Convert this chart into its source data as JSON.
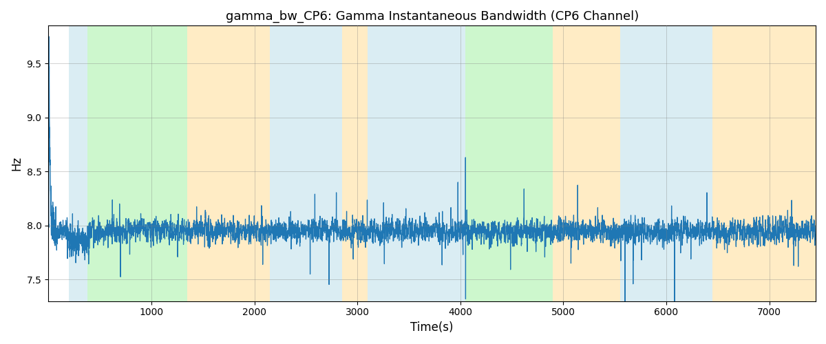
{
  "title": "gamma_bw_CP6: Gamma Instantaneous Bandwidth (CP6 Channel)",
  "xlabel": "Time(s)",
  "ylabel": "Hz",
  "xlim": [
    0,
    7450
  ],
  "ylim": [
    7.3,
    9.85
  ],
  "yticks": [
    7.5,
    8.0,
    8.5,
    9.0,
    9.5
  ],
  "xticks": [
    1000,
    2000,
    3000,
    4000,
    5000,
    6000,
    7000
  ],
  "line_color": "#1f77b4",
  "line_width": 0.9,
  "background_color": "#ffffff",
  "seed": 42,
  "bands": [
    {
      "xmin": 200,
      "xmax": 380,
      "color": "#ADD8E6",
      "alpha": 0.45
    },
    {
      "xmin": 380,
      "xmax": 1350,
      "color": "#90EE90",
      "alpha": 0.45
    },
    {
      "xmin": 1350,
      "xmax": 2150,
      "color": "#FFD580",
      "alpha": 0.45
    },
    {
      "xmin": 2150,
      "xmax": 2850,
      "color": "#ADD8E6",
      "alpha": 0.45
    },
    {
      "xmin": 2850,
      "xmax": 3100,
      "color": "#FFD580",
      "alpha": 0.45
    },
    {
      "xmin": 3100,
      "xmax": 3900,
      "color": "#ADD8E6",
      "alpha": 0.45
    },
    {
      "xmin": 3900,
      "xmax": 4050,
      "color": "#ADD8E6",
      "alpha": 0.45
    },
    {
      "xmin": 4050,
      "xmax": 4900,
      "color": "#90EE90",
      "alpha": 0.45
    },
    {
      "xmin": 4900,
      "xmax": 5550,
      "color": "#FFD580",
      "alpha": 0.45
    },
    {
      "xmin": 5550,
      "xmax": 6450,
      "color": "#ADD8E6",
      "alpha": 0.45
    },
    {
      "xmin": 6450,
      "xmax": 7450,
      "color": "#FFD580",
      "alpha": 0.45
    }
  ],
  "n_points": 7300,
  "base_value": 7.95,
  "noise_std": 0.095,
  "seed2": 123
}
